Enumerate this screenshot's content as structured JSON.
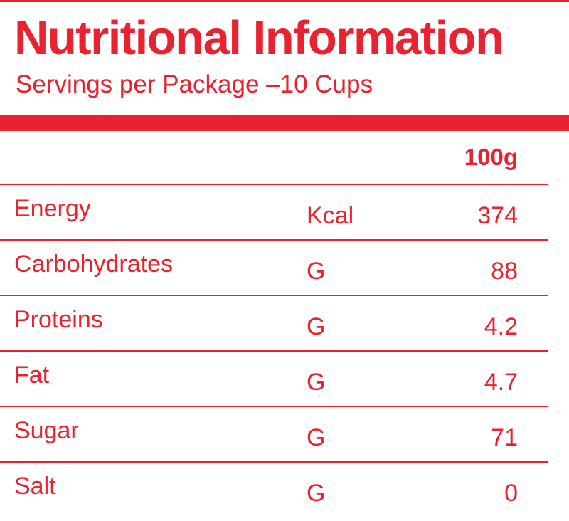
{
  "header": {
    "title": "Nutritional Information",
    "subtitle": "Servings per Package –10 Cups"
  },
  "table": {
    "column_header": "100g",
    "rows": [
      {
        "name": "Energy",
        "unit": "Kcal",
        "value": "374"
      },
      {
        "name": "Carbohydrates",
        "unit": "G",
        "value": "88"
      },
      {
        "name": "Proteins",
        "unit": "G",
        "value": "4.2"
      },
      {
        "name": "Fat",
        "unit": "G",
        "value": "4.7"
      },
      {
        "name": "Sugar",
        "unit": "G",
        "value": "71"
      },
      {
        "name": "Salt",
        "unit": "G",
        "value": "0"
      }
    ]
  },
  "colors": {
    "accent": "#e8222e",
    "background": "#ffffff"
  }
}
